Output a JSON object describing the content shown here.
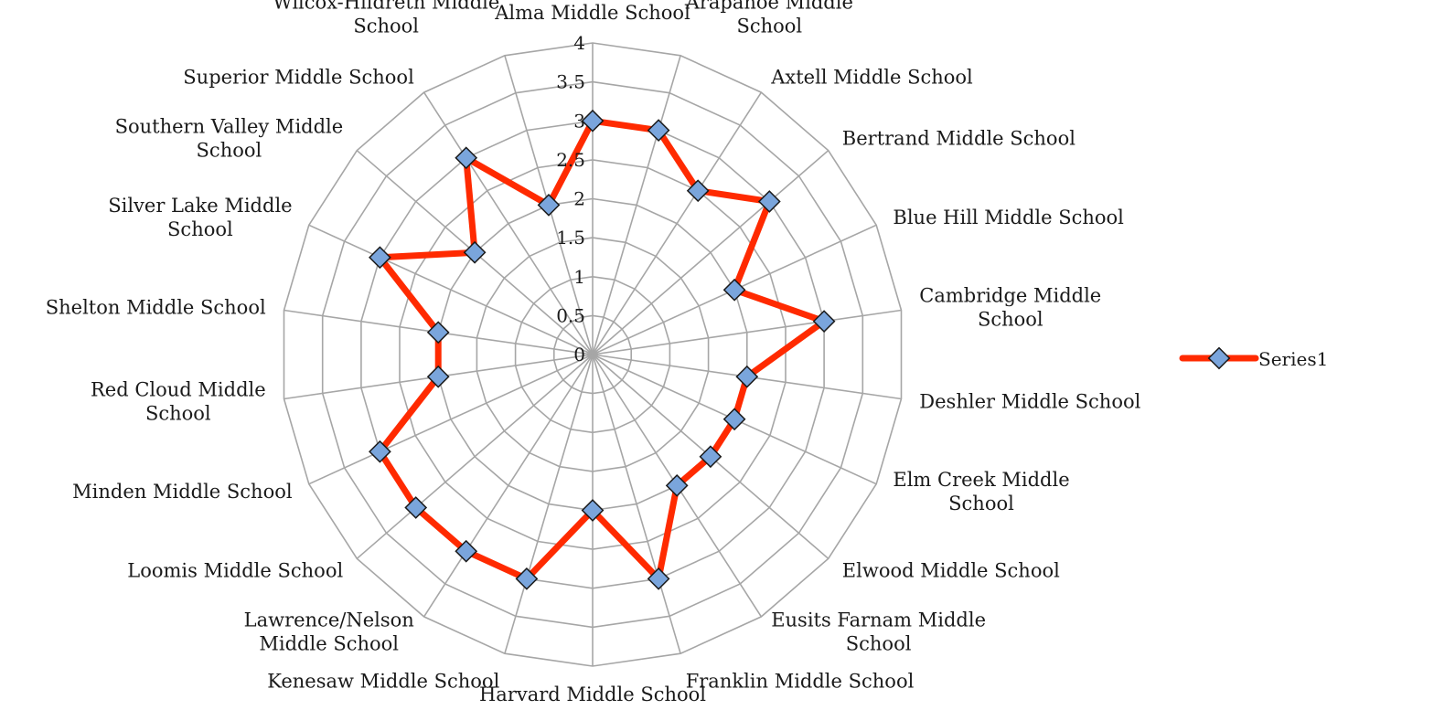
{
  "chart_data": {
    "type": "radar",
    "title": "",
    "categories": [
      "Alma Middle School",
      "Arapahoe Middle School",
      "Axtell Middle School",
      "Bertrand Middle School",
      "Blue Hill Middle School",
      "Cambridge Middle School",
      "Deshler Middle School",
      "Elm Creek Middle School",
      "Elwood Middle School",
      "Eusits Farnam Middle School",
      "Franklin Middle School",
      "Harvard Middle School",
      "Kenesaw Middle School",
      "Lawrence/Nelson Middle School",
      "Loomis Middle School",
      "Minden Middle School",
      "Red Cloud Middle School",
      "Shelton Middle School",
      "Silver Lake Middle School",
      "Southern Valley Middle School",
      "Superior Middle School",
      "Wilcox-Hildreth Middle School"
    ],
    "series": [
      {
        "name": "Series1",
        "values": [
          3.0,
          3.0,
          2.5,
          3.0,
          2.0,
          3.0,
          2.0,
          2.0,
          2.0,
          2.0,
          3.0,
          2.0,
          3.0,
          3.0,
          3.0,
          3.0,
          2.0,
          2.0,
          3.0,
          2.0,
          3.0,
          2.0
        ]
      }
    ],
    "axis": {
      "min": 0,
      "max": 4,
      "step": 0.5,
      "ticks": [
        "0",
        "0.5",
        "1",
        "1.5",
        "2",
        "2.5",
        "3",
        "3.5",
        "4"
      ]
    },
    "grid": true,
    "legend_position": "right",
    "colors": {
      "line": "#ff2a00",
      "marker_fill": "#7aa5dc",
      "marker_stroke": "#1a1a1a",
      "grid": "#a6a6a6"
    }
  }
}
